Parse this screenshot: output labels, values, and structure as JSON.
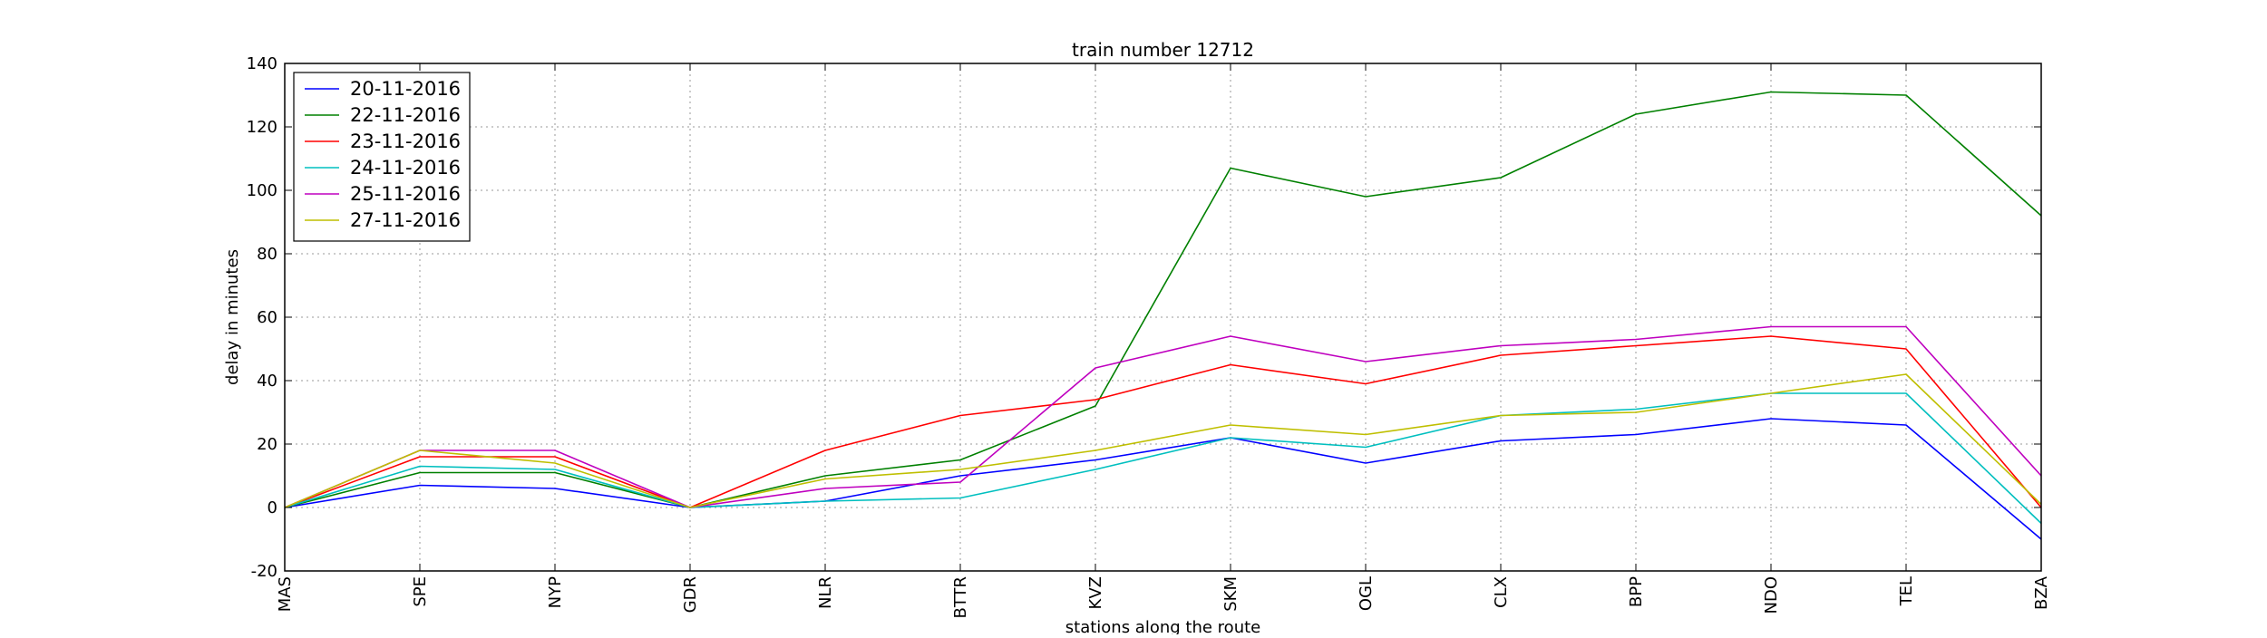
{
  "chart_data": {
    "type": "line",
    "title": "train number 12712",
    "xlabel": "stations along the route",
    "ylabel": "delay in minutes",
    "ylim": [
      -20,
      140
    ],
    "yticks": [
      -20,
      0,
      20,
      40,
      60,
      80,
      100,
      120,
      140
    ],
    "grid": true,
    "legend_position": "top-left",
    "categories": [
      "MAS",
      "SPE",
      "NYP",
      "GDR",
      "NLR",
      "BTTR",
      "KVZ",
      "SKM",
      "OGL",
      "CLX",
      "BPP",
      "NDO",
      "TEL",
      "BZA"
    ],
    "series": [
      {
        "name": "20-11-2016",
        "color": "#0000ff",
        "values": [
          0,
          7,
          6,
          0,
          2,
          10,
          15,
          22,
          14,
          21,
          23,
          28,
          26,
          -10
        ]
      },
      {
        "name": "22-11-2016",
        "color": "#008000",
        "values": [
          0,
          11,
          11,
          0,
          10,
          15,
          32,
          107,
          98,
          104,
          124,
          131,
          130,
          92
        ]
      },
      {
        "name": "23-11-2016",
        "color": "#ff0000",
        "values": [
          0,
          16,
          16,
          0,
          18,
          29,
          34,
          45,
          39,
          48,
          51,
          54,
          50,
          0
        ]
      },
      {
        "name": "24-11-2016",
        "color": "#00bfbf",
        "values": [
          0,
          13,
          12,
          0,
          2,
          3,
          12,
          22,
          19,
          29,
          31,
          36,
          36,
          -5
        ]
      },
      {
        "name": "25-11-2016",
        "color": "#bf00bf",
        "values": [
          0,
          18,
          18,
          0,
          6,
          8,
          44,
          54,
          46,
          51,
          53,
          57,
          57,
          10
        ]
      },
      {
        "name": "27-11-2016",
        "color": "#bfbf00",
        "values": [
          0,
          18,
          14,
          0,
          9,
          12,
          18,
          26,
          23,
          29,
          30,
          36,
          42,
          1
        ]
      }
    ]
  }
}
